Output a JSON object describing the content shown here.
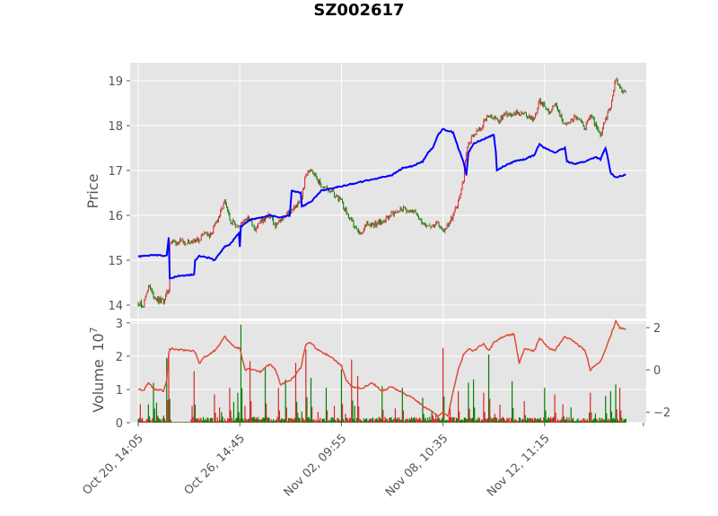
{
  "chart_data": {
    "type": "line",
    "title": "SZ002617",
    "colors": {
      "up_candle": "#d62728",
      "down_candle": "#008000",
      "moving_average": "#0000ff",
      "secondary_line": "#e24a33",
      "panel_background": "#e5e5e5",
      "grid": "#ffffff"
    },
    "price_panel": {
      "ylabel": "Price",
      "ylim": [
        13.7,
        19.4
      ],
      "yticks": [
        "14",
        "15",
        "16",
        "17",
        "18",
        "19"
      ],
      "grid": true
    },
    "volume_panel": {
      "ylabel": "Volume",
      "scale_label": "1e7",
      "ylim": [
        0,
        3.05
      ],
      "yticks": [
        "0",
        "1",
        "2",
        "3"
      ],
      "right_ylim": [
        -2.5,
        2.3
      ],
      "right_yticks": [
        "−2",
        "0",
        "2"
      ],
      "grid": true
    },
    "x_tick_labels": [
      "Oct 20, 14:05",
      "Oct 26, 14:45",
      "Nov 02, 09:55",
      "Nov 08, 10:35",
      "Nov 12, 11:15"
    ],
    "x_tick_positions": [
      0,
      100,
      200,
      300,
      400
    ],
    "x_range": [
      -8,
      500
    ],
    "last_index": 480,
    "series": [
      {
        "kind": "candlestick",
        "panel": "price",
        "close": [
          [
            0,
            14.05
          ],
          [
            5,
            14.0
          ],
          [
            10,
            14.45
          ],
          [
            15,
            14.2
          ],
          [
            20,
            14.1
          ],
          [
            25,
            14.1
          ],
          [
            30,
            14.35
          ],
          [
            31,
            15.4
          ],
          [
            45,
            15.4
          ],
          [
            55,
            15.45
          ],
          [
            60,
            15.45
          ],
          [
            65,
            15.65
          ],
          [
            70,
            15.5
          ],
          [
            80,
            16.0
          ],
          [
            85,
            16.3
          ],
          [
            90,
            15.9
          ],
          [
            100,
            15.75
          ],
          [
            105,
            15.95
          ],
          [
            110,
            15.9
          ],
          [
            115,
            15.7
          ],
          [
            120,
            15.85
          ],
          [
            130,
            16.0
          ],
          [
            135,
            15.75
          ],
          [
            140,
            15.9
          ],
          [
            150,
            16.1
          ],
          [
            160,
            16.3
          ],
          [
            165,
            16.9
          ],
          [
            170,
            17.05
          ],
          [
            175,
            16.85
          ],
          [
            180,
            16.65
          ],
          [
            190,
            16.55
          ],
          [
            200,
            16.3
          ],
          [
            205,
            16.05
          ],
          [
            210,
            15.85
          ],
          [
            215,
            15.65
          ],
          [
            220,
            15.55
          ],
          [
            225,
            15.85
          ],
          [
            230,
            15.8
          ],
          [
            240,
            15.85
          ],
          [
            250,
            16.05
          ],
          [
            260,
            16.15
          ],
          [
            270,
            16.1
          ],
          [
            280,
            15.85
          ],
          [
            290,
            15.75
          ],
          [
            295,
            15.8
          ],
          [
            300,
            15.65
          ],
          [
            305,
            15.8
          ],
          [
            310,
            16.0
          ],
          [
            315,
            16.3
          ],
          [
            320,
            16.8
          ],
          [
            322,
            17.25
          ],
          [
            325,
            17.6
          ],
          [
            330,
            17.8
          ],
          [
            335,
            17.9
          ],
          [
            345,
            18.2
          ],
          [
            355,
            18.1
          ],
          [
            360,
            18.25
          ],
          [
            370,
            18.3
          ],
          [
            380,
            18.25
          ],
          [
            390,
            18.15
          ],
          [
            395,
            18.55
          ],
          [
            405,
            18.3
          ],
          [
            410,
            18.5
          ],
          [
            420,
            18.0
          ],
          [
            430,
            18.2
          ],
          [
            440,
            17.95
          ],
          [
            445,
            18.25
          ],
          [
            455,
            17.75
          ],
          [
            460,
            18.15
          ],
          [
            465,
            18.45
          ],
          [
            470,
            19.05
          ],
          [
            474,
            18.85
          ],
          [
            480,
            18.7
          ]
        ],
        "volatility": 0.12
      },
      {
        "kind": "line",
        "panel": "price",
        "close": [
          [
            0,
            15.08
          ],
          [
            15,
            15.12
          ],
          [
            28,
            15.1
          ],
          [
            30,
            15.5
          ],
          [
            31,
            14.6
          ],
          [
            40,
            14.65
          ],
          [
            55,
            14.68
          ],
          [
            56,
            15.0
          ],
          [
            60,
            15.1
          ],
          [
            70,
            15.05
          ],
          [
            75,
            15.0
          ],
          [
            80,
            15.15
          ],
          [
            85,
            15.3
          ],
          [
            90,
            15.35
          ],
          [
            99,
            15.6
          ],
          [
            100,
            15.3
          ],
          [
            101,
            15.75
          ],
          [
            110,
            15.9
          ],
          [
            120,
            15.95
          ],
          [
            130,
            16.0
          ],
          [
            140,
            15.95
          ],
          [
            149,
            16.0
          ],
          [
            150,
            16.25
          ],
          [
            151,
            16.55
          ],
          [
            160,
            16.5
          ],
          [
            161,
            16.2
          ],
          [
            170,
            16.3
          ],
          [
            180,
            16.55
          ],
          [
            190,
            16.6
          ],
          [
            200,
            16.65
          ],
          [
            210,
            16.7
          ],
          [
            220,
            16.75
          ],
          [
            230,
            16.8
          ],
          [
            240,
            16.85
          ],
          [
            250,
            16.9
          ],
          [
            260,
            17.05
          ],
          [
            270,
            17.1
          ],
          [
            280,
            17.2
          ],
          [
            285,
            17.4
          ],
          [
            290,
            17.5
          ],
          [
            295,
            17.8
          ],
          [
            300,
            17.92
          ],
          [
            310,
            17.85
          ],
          [
            315,
            17.5
          ],
          [
            320,
            17.2
          ],
          [
            323,
            16.9
          ],
          [
            325,
            17.4
          ],
          [
            330,
            17.6
          ],
          [
            340,
            17.7
          ],
          [
            345,
            17.75
          ],
          [
            350,
            17.8
          ],
          [
            352,
            17.4
          ],
          [
            353,
            17.0
          ],
          [
            360,
            17.1
          ],
          [
            370,
            17.2
          ],
          [
            380,
            17.25
          ],
          [
            390,
            17.35
          ],
          [
            395,
            17.6
          ],
          [
            400,
            17.5
          ],
          [
            410,
            17.4
          ],
          [
            420,
            17.5
          ],
          [
            422,
            17.2
          ],
          [
            430,
            17.15
          ],
          [
            440,
            17.2
          ],
          [
            450,
            17.3
          ],
          [
            455,
            17.25
          ],
          [
            460,
            17.5
          ],
          [
            462,
            17.3
          ],
          [
            465,
            16.95
          ],
          [
            470,
            16.85
          ],
          [
            480,
            16.9
          ]
        ],
        "volatility": 0.025
      },
      {
        "kind": "bar",
        "panel": "volume",
        "spikes": [
          [
            10,
            0.55
          ],
          [
            15,
            1.2
          ],
          [
            18,
            0.6
          ],
          [
            28,
            1.95
          ],
          [
            30,
            2.05
          ],
          [
            55,
            1.55
          ],
          [
            75,
            0.85
          ],
          [
            90,
            1.05
          ],
          [
            98,
            0.9
          ],
          [
            101,
            2.95
          ],
          [
            110,
            1.85
          ],
          [
            125,
            1.65
          ],
          [
            138,
            1.05
          ],
          [
            145,
            1.3
          ],
          [
            155,
            1.8
          ],
          [
            165,
            2.2
          ],
          [
            170,
            1.35
          ],
          [
            185,
            1.05
          ],
          [
            200,
            1.6
          ],
          [
            210,
            1.9
          ],
          [
            216,
            1.4
          ],
          [
            240,
            1.1
          ],
          [
            260,
            1.05
          ],
          [
            280,
            0.75
          ],
          [
            300,
            2.25
          ],
          [
            315,
            0.95
          ],
          [
            325,
            1.2
          ],
          [
            330,
            1.3
          ],
          [
            340,
            0.9
          ],
          [
            345,
            2.05
          ],
          [
            368,
            1.25
          ],
          [
            380,
            0.65
          ],
          [
            400,
            1.05
          ],
          [
            410,
            0.85
          ],
          [
            418,
            0.55
          ],
          [
            445,
            0.9
          ],
          [
            460,
            0.8
          ],
          [
            465,
            0.95
          ],
          [
            470,
            1.15
          ],
          [
            474,
            1.05
          ]
        ],
        "baseline": 0.12
      },
      {
        "kind": "line",
        "panel": "volume-right",
        "close": [
          [
            0,
            -0.9
          ],
          [
            5,
            -1.0
          ],
          [
            10,
            -0.6
          ],
          [
            15,
            -0.9
          ],
          [
            25,
            -1.0
          ],
          [
            28,
            -0.5
          ],
          [
            30,
            0.8
          ],
          [
            31,
            1.0
          ],
          [
            40,
            0.95
          ],
          [
            55,
            0.9
          ],
          [
            58,
            0.6
          ],
          [
            60,
            0.3
          ],
          [
            65,
            0.6
          ],
          [
            75,
            0.9
          ],
          [
            80,
            1.2
          ],
          [
            85,
            1.6
          ],
          [
            90,
            1.3
          ],
          [
            95,
            1.1
          ],
          [
            100,
            1.0
          ],
          [
            105,
            0.0
          ],
          [
            110,
            0.05
          ],
          [
            120,
            -0.1
          ],
          [
            130,
            0.3
          ],
          [
            135,
            0.0
          ],
          [
            140,
            -0.7
          ],
          [
            150,
            -0.5
          ],
          [
            160,
            0.1
          ],
          [
            165,
            1.2
          ],
          [
            170,
            1.3
          ],
          [
            175,
            1.0
          ],
          [
            180,
            0.85
          ],
          [
            190,
            0.6
          ],
          [
            200,
            0.2
          ],
          [
            205,
            -0.5
          ],
          [
            210,
            -0.8
          ],
          [
            220,
            -0.9
          ],
          [
            230,
            -0.6
          ],
          [
            240,
            -1.0
          ],
          [
            250,
            -0.8
          ],
          [
            260,
            -1.1
          ],
          [
            270,
            -1.3
          ],
          [
            280,
            -1.7
          ],
          [
            290,
            -2.0
          ],
          [
            295,
            -2.2
          ],
          [
            300,
            -2.0
          ],
          [
            305,
            -2.2
          ],
          [
            310,
            -1.0
          ],
          [
            315,
            0.0
          ],
          [
            320,
            0.7
          ],
          [
            325,
            1.0
          ],
          [
            330,
            0.9
          ],
          [
            340,
            1.25
          ],
          [
            345,
            0.9
          ],
          [
            350,
            1.3
          ],
          [
            360,
            1.6
          ],
          [
            370,
            1.7
          ],
          [
            375,
            0.3
          ],
          [
            380,
            1.0
          ],
          [
            390,
            0.9
          ],
          [
            395,
            1.5
          ],
          [
            405,
            1.0
          ],
          [
            410,
            0.9
          ],
          [
            420,
            1.6
          ],
          [
            430,
            1.3
          ],
          [
            440,
            0.9
          ],
          [
            445,
            0.0
          ],
          [
            455,
            0.4
          ],
          [
            460,
            1.0
          ],
          [
            465,
            1.6
          ],
          [
            470,
            2.3
          ],
          [
            474,
            2.0
          ],
          [
            480,
            1.9
          ]
        ],
        "volatility": 0.08
      }
    ]
  }
}
